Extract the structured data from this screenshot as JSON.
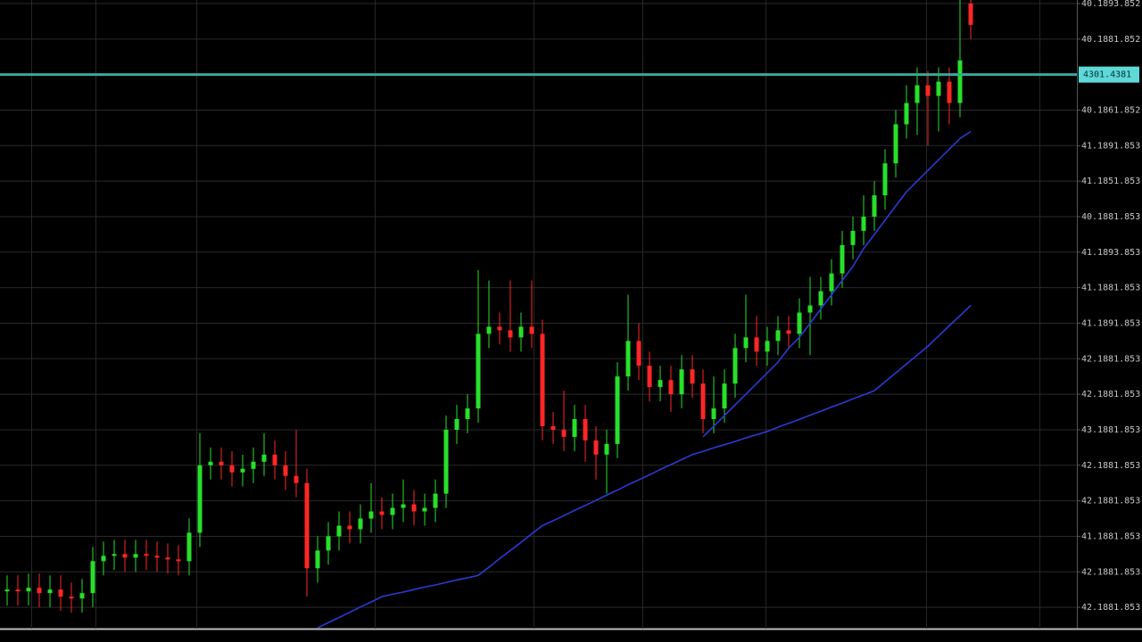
{
  "chart_data": {
    "type": "candlestick",
    "up_color": "#27e02a",
    "down_color": "#ff2626",
    "grid": true,
    "ylim": [
      -0.6,
      17.1
    ],
    "yticks": [
      {
        "value": 0,
        "label": "42.1881.853"
      },
      {
        "value": 1,
        "label": "42.1881.853"
      },
      {
        "value": 2,
        "label": "41.1881.853"
      },
      {
        "value": 3,
        "label": "42.1881.853"
      },
      {
        "value": 4,
        "label": "42.1881.853"
      },
      {
        "value": 5,
        "label": "43.1881.853"
      },
      {
        "value": 6,
        "label": "42.1881.853"
      },
      {
        "value": 7,
        "label": "42.1881.853"
      },
      {
        "value": 8,
        "label": "41.1891.853"
      },
      {
        "value": 9,
        "label": "41.1881.853"
      },
      {
        "value": 10,
        "label": "41.1893.853"
      },
      {
        "value": 11,
        "label": "40.1881.853"
      },
      {
        "value": 12,
        "label": "41.1851.853"
      },
      {
        "value": 13,
        "label": "41.1891.853"
      },
      {
        "value": 14,
        "label": "40.1861.852"
      },
      {
        "value": 16,
        "label": "40.1881.852"
      },
      {
        "value": 17,
        "label": "40.1893.852"
      }
    ],
    "current_price": {
      "value": 15,
      "label": "4301.4381",
      "color": "#3aa89a"
    },
    "open": [
      0.45,
      0.5,
      0.45,
      0.55,
      0.4,
      0.5,
      0.3,
      0.25,
      0.4,
      1.3,
      1.45,
      1.5,
      1.4,
      1.5,
      1.45,
      1.4,
      1.35,
      1.3,
      2.1,
      4.0,
      4.1,
      4.0,
      3.8,
      3.9,
      4.1,
      4.3,
      4.0,
      3.7,
      3.5,
      1.1,
      1.6,
      2.0,
      2.3,
      2.2,
      2.5,
      2.7,
      2.6,
      2.8,
      2.9,
      2.7,
      2.8,
      3.2,
      5.0,
      5.3,
      5.6,
      7.7,
      7.9,
      7.8,
      7.6,
      7.9,
      7.7,
      5.1,
      5.0,
      4.8,
      5.3,
      4.7,
      4.3,
      4.6,
      6.5,
      7.5,
      6.8,
      6.2,
      6.4,
      6.0,
      6.7,
      6.3,
      5.3,
      5.6,
      6.3,
      7.3,
      7.6,
      7.2,
      7.5,
      7.8,
      7.7,
      8.3,
      8.5,
      8.9,
      9.4,
      10.2,
      10.6,
      11.0,
      11.6,
      12.5,
      13.6,
      14.2,
      14.7,
      14.4,
      14.8,
      14.2,
      17.0
    ],
    "high": [
      0.9,
      0.9,
      0.95,
      0.95,
      0.9,
      0.9,
      0.7,
      0.8,
      1.7,
      1.85,
      1.9,
      1.9,
      1.9,
      1.9,
      1.85,
      1.8,
      1.75,
      2.5,
      4.9,
      4.5,
      4.5,
      4.4,
      4.3,
      4.5,
      4.9,
      4.7,
      4.4,
      5.0,
      3.9,
      2.0,
      2.4,
      2.7,
      2.7,
      2.9,
      3.5,
      3.1,
      3.2,
      3.6,
      3.3,
      3.2,
      3.6,
      5.4,
      5.7,
      6.0,
      9.5,
      9.2,
      8.3,
      9.2,
      8.3,
      9.2,
      8.1,
      5.5,
      6.1,
      5.7,
      5.7,
      5.1,
      5.0,
      6.9,
      8.8,
      8.0,
      7.2,
      6.8,
      6.8,
      7.1,
      7.1,
      6.7,
      6.5,
      6.7,
      7.7,
      8.8,
      8.2,
      7.9,
      8.2,
      8.2,
      8.7,
      9.3,
      9.3,
      9.8,
      10.6,
      11.0,
      11.6,
      12.0,
      12.9,
      14.0,
      14.7,
      15.2,
      15.1,
      15.2,
      15.2,
      17.1,
      17.1
    ],
    "low": [
      0.05,
      0.05,
      0.05,
      0,
      0,
      -0.1,
      -0.15,
      -0.15,
      0,
      0.9,
      1.05,
      1.0,
      1.0,
      1.05,
      1.0,
      0.95,
      0.9,
      0.9,
      1.7,
      3.6,
      3.6,
      3.4,
      3.4,
      3.5,
      3.7,
      3.6,
      3.3,
      3.1,
      0.3,
      0.7,
      1.2,
      1.6,
      1.8,
      1.8,
      2.1,
      2.2,
      2.2,
      2.4,
      2.3,
      2.3,
      2.4,
      2.8,
      4.6,
      4.9,
      5.2,
      7.3,
      7.4,
      7.2,
      7.2,
      7.3,
      4.7,
      4.6,
      4.4,
      4.4,
      4.1,
      3.6,
      3.2,
      4.2,
      6.1,
      6.4,
      5.8,
      5.8,
      5.5,
      5.6,
      5.9,
      4.9,
      4.9,
      5.2,
      5.9,
      6.9,
      6.8,
      6.8,
      7.1,
      7.3,
      7.3,
      7.1,
      8.1,
      8.5,
      9.0,
      9.8,
      10.2,
      10.6,
      11.2,
      12.1,
      13.2,
      13.3,
      13.0,
      13.4,
      13.6,
      13.8,
      16.0
    ],
    "close": [
      0.5,
      0.45,
      0.55,
      0.4,
      0.5,
      0.3,
      0.25,
      0.4,
      1.3,
      1.45,
      1.5,
      1.4,
      1.5,
      1.45,
      1.4,
      1.35,
      1.3,
      2.1,
      4.0,
      4.1,
      4.0,
      3.8,
      3.9,
      4.1,
      4.3,
      4.0,
      3.7,
      3.5,
      1.1,
      1.6,
      2.0,
      2.3,
      2.2,
      2.5,
      2.7,
      2.6,
      2.8,
      2.9,
      2.7,
      2.8,
      3.2,
      5.0,
      5.3,
      5.6,
      7.7,
      7.9,
      7.8,
      7.6,
      7.9,
      7.7,
      5.1,
      5.0,
      4.8,
      5.3,
      4.7,
      4.3,
      4.6,
      6.5,
      7.5,
      6.8,
      6.2,
      6.4,
      6.0,
      6.7,
      6.3,
      5.3,
      5.6,
      6.3,
      7.3,
      7.6,
      7.2,
      7.5,
      7.8,
      7.7,
      8.3,
      8.5,
      8.9,
      9.4,
      10.2,
      10.6,
      11.0,
      11.6,
      12.5,
      13.6,
      14.2,
      14.7,
      14.4,
      14.8,
      14.2,
      15.4,
      16.4
    ],
    "series": [
      {
        "color": "#2a3bd6",
        "values": [
          null,
          null,
          null,
          null,
          null,
          null,
          null,
          null,
          null,
          null,
          null,
          null,
          null,
          null,
          null,
          null,
          null,
          null,
          null,
          null,
          null,
          null,
          null,
          null,
          null,
          null,
          null,
          null,
          null,
          null,
          null,
          null,
          null,
          null,
          null,
          null,
          null,
          null,
          null,
          null,
          null,
          null,
          null,
          null,
          null,
          null,
          null,
          null,
          null,
          null,
          null,
          null,
          null,
          null,
          null,
          null,
          null,
          null,
          null,
          null,
          null,
          null,
          null,
          null,
          null,
          4.8,
          5.1,
          5.4,
          5.7,
          6.0,
          6.3,
          6.6,
          6.9,
          7.3,
          7.6,
          8.0,
          8.4,
          8.8,
          9.2,
          9.6,
          10.1,
          10.5,
          10.9,
          11.3,
          11.7,
          12.0,
          12.3,
          12.6,
          12.9,
          13.2,
          13.4
        ]
      },
      {
        "color": "#2a3bd6",
        "values": [
          null,
          null,
          null,
          null,
          null,
          null,
          null,
          null,
          null,
          null,
          null,
          null,
          null,
          null,
          null,
          null,
          null,
          null,
          null,
          null,
          null,
          null,
          null,
          null,
          null,
          null,
          null,
          null,
          null,
          -0.58,
          -0.43,
          -0.29,
          -0.14,
          0.01,
          0.15,
          0.3,
          0.37,
          0.43,
          0.5,
          0.57,
          0.63,
          0.7,
          0.77,
          0.83,
          0.9,
          1.13,
          1.37,
          1.6,
          1.83,
          2.07,
          2.3,
          2.44,
          2.58,
          2.73,
          2.87,
          3.01,
          3.16,
          3.3,
          3.45,
          3.59,
          3.73,
          3.88,
          4.02,
          4.16,
          4.3,
          4.39,
          4.49,
          4.58,
          4.67,
          4.77,
          4.86,
          4.95,
          5.07,
          5.18,
          5.29,
          5.41,
          5.52,
          5.64,
          5.75,
          5.87,
          5.98,
          6.1,
          6.35,
          6.6,
          6.85,
          7.1,
          7.35,
          7.64,
          7.93,
          8.21,
          8.5
        ]
      }
    ]
  }
}
